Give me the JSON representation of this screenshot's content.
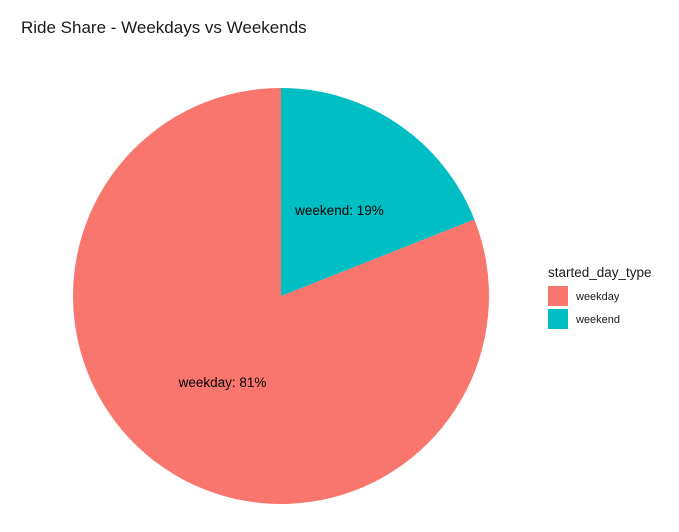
{
  "chart_data": {
    "type": "pie",
    "title": "Ride Share - Weekdays vs Weekends",
    "categories": [
      "weekday",
      "weekend"
    ],
    "values": [
      81,
      19
    ],
    "slice_labels": [
      "weekday: 81%",
      "weekend: 19%"
    ],
    "colors": [
      "#F8766D",
      "#00BFC4"
    ],
    "start": "12 o'clock",
    "direction": "counterclockwise",
    "legend": {
      "title": "started_day_type",
      "position": "right",
      "entries": [
        "weekday",
        "weekend"
      ]
    },
    "grid": false
  }
}
